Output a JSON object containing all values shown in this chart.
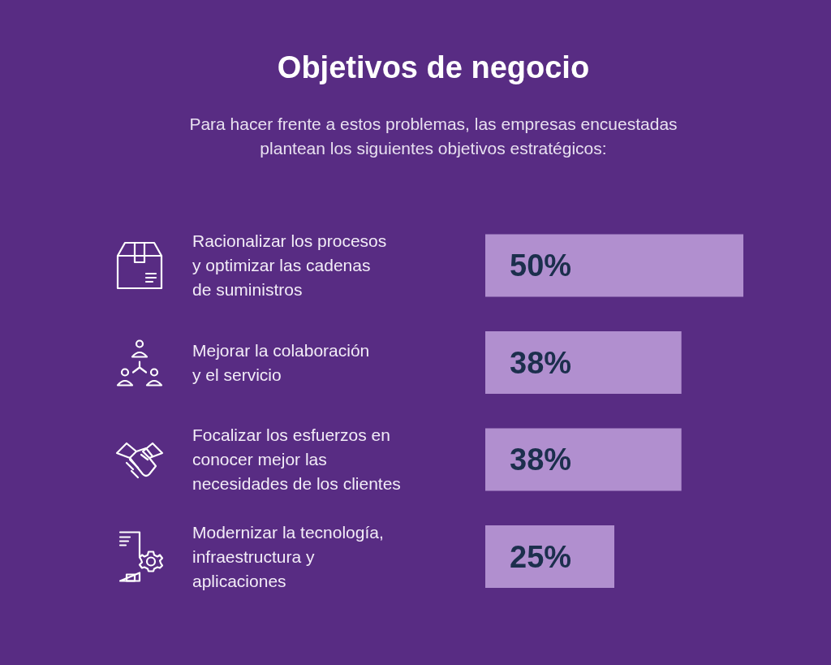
{
  "chart_data": {
    "type": "bar",
    "orientation": "horizontal",
    "title": "Objetivos de negocio",
    "subtitle": "Para hacer frente a estos problemas, las empresas encuestadas\nplantean los siguientes objetivos estratégicos:",
    "categories": [
      "Racionalizar los procesos\ny optimizar las cadenas\nde suministros",
      "Mejorar la colaboración\ny el servicio",
      "Focalizar los esfuerzos en\nconocer mejor las\nnecesidades de los clientes",
      "Modernizar la tecnología,\ninfraestructura y\naplicaciones"
    ],
    "values": [
      50,
      38,
      38,
      25
    ],
    "value_labels": [
      "50%",
      "38%",
      "38%",
      "25%"
    ],
    "color": "#b18fcf"
  }
}
